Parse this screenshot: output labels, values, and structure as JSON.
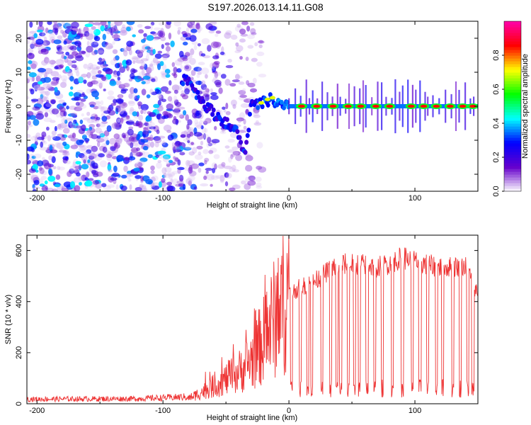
{
  "title": "S197.2026.013.14.11.G08",
  "chart_data": [
    {
      "type": "heatmap",
      "panel": "spectrogram",
      "xlabel": "Height of straight line (km)",
      "ylabel": "Frequency (Hz)",
      "xlim": [
        -208,
        150
      ],
      "ylim": [
        -25,
        25
      ],
      "xticks": [
        -200,
        -100,
        0,
        100
      ],
      "xtick_labels": [
        "-200",
        "-100",
        "0",
        "100"
      ],
      "yticks": [
        -20,
        -10,
        0,
        10,
        20
      ],
      "ytick_labels": [
        "-20",
        "-10",
        "0",
        "10",
        "20"
      ],
      "colorbar": {
        "label": "Normalized spectral amplitude",
        "range": [
          0,
          1
        ],
        "ticks": [
          0.0,
          0.2,
          0.4,
          0.6,
          0.8
        ],
        "tick_labels": [
          "0.0",
          "0.2",
          "0.4",
          "0.6",
          "0.8"
        ],
        "colormap": [
          "#ffffff",
          "#6600cc",
          "#0000ff",
          "#00ffff",
          "#00ff00",
          "#ffff00",
          "#ff0000",
          "#ff00aa"
        ]
      },
      "ridge": {
        "description_points_x": [
          -80,
          -70,
          -60,
          -50,
          -40,
          -35,
          -30,
          -20,
          -15,
          -10,
          -5,
          0,
          50,
          100,
          150
        ],
        "description_points_y": [
          8,
          2,
          -2,
          -5,
          -8,
          -15,
          0,
          1,
          2,
          1,
          0,
          0,
          0,
          0,
          0
        ],
        "peak_segments_x": [
          10,
          22,
          35,
          47,
          57,
          69,
          80,
          97,
          107,
          117,
          128,
          138,
          146
        ],
        "peak_level": 0.85
      },
      "noise_region_x": [
        -208,
        -30
      ]
    },
    {
      "type": "line",
      "panel": "snr",
      "xlabel": "Height of straight line (km)",
      "ylabel": "SNR (10 * v/v)",
      "xlim": [
        -208,
        150
      ],
      "ylim": [
        0,
        660
      ],
      "xticks": [
        -200,
        -100,
        0,
        100
      ],
      "xtick_labels": [
        "-200",
        "-100",
        "0",
        "100"
      ],
      "yticks": [
        0,
        200,
        400,
        600
      ],
      "ytick_labels": [
        "0",
        "200",
        "400",
        "600"
      ],
      "color": "#ee3333",
      "envelope_x": [
        -208,
        -120,
        -80,
        -70,
        -60,
        -50,
        -40,
        -30,
        -20,
        -10,
        0,
        10,
        20,
        30,
        40,
        50,
        60,
        70,
        80,
        90,
        100,
        110,
        120,
        130,
        140,
        150
      ],
      "envelope_y": [
        20,
        22,
        30,
        60,
        90,
        120,
        150,
        200,
        280,
        380,
        450,
        480,
        500,
        540,
        570,
        575,
        570,
        560,
        575,
        600,
        585,
        570,
        560,
        560,
        565,
        450
      ],
      "dropouts_x": [
        2,
        9,
        15,
        18,
        26,
        33,
        38,
        41,
        47,
        52,
        56,
        62,
        68,
        74,
        82,
        90,
        98,
        104,
        110,
        117,
        122,
        130,
        136,
        142,
        146
      ],
      "dropout_level": 60
    }
  ]
}
